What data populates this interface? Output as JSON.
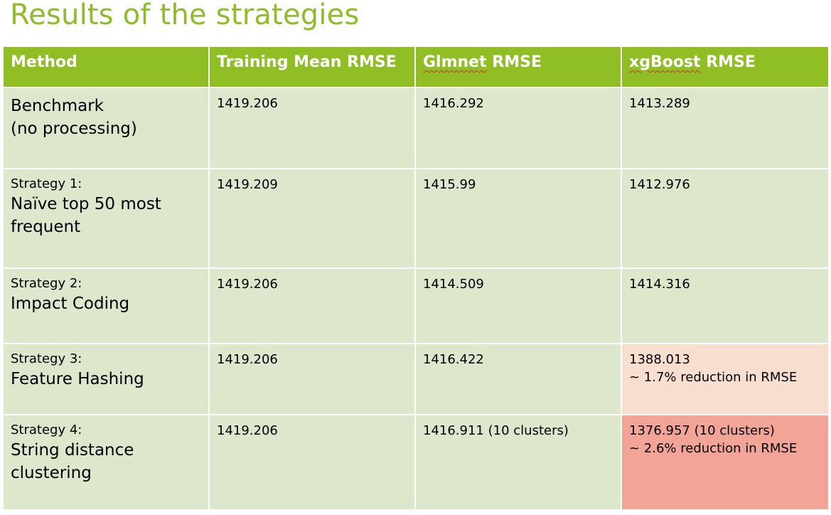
{
  "slide": {
    "title": "Results of the strategies"
  },
  "table": {
    "headers": {
      "method": "Method",
      "training": "Training Mean RMSE",
      "glmnet_word": "Glmnet",
      "glmnet_rest": " RMSE",
      "xgboost_word": "xgBoost",
      "xgboost_rest": " RMSE"
    },
    "rows": [
      {
        "label_small": "",
        "label_big": [
          "Benchmark",
          "(no processing)"
        ],
        "training": "1419.206",
        "glmnet": "1416.292",
        "xgboost": [
          "1413.289"
        ]
      },
      {
        "label_small": "Strategy 1:",
        "label_big": [
          "Naïve top 50 most",
          "frequent"
        ],
        "training": "1419.209",
        "glmnet": "1415.99",
        "xgboost": [
          "1412.976"
        ]
      },
      {
        "label_small": "Strategy 2:",
        "label_big": [
          "Impact Coding"
        ],
        "training": "1419.206",
        "glmnet": "1414.509",
        "xgboost": [
          "1414.316"
        ]
      },
      {
        "label_small": "Strategy 3:",
        "label_big": [
          "Feature Hashing"
        ],
        "training": "1419.206",
        "glmnet": "1416.422",
        "xgboost": [
          "1388.013",
          "~ 1.7% reduction in RMSE"
        ]
      },
      {
        "label_small": "Strategy 4:",
        "label_big": [
          "String distance",
          "clustering"
        ],
        "training": "1419.206",
        "glmnet": "1416.911 (10 clusters)",
        "xgboost": [
          "1376.957 (10 clusters)",
          "~ 2.6% reduction in RMSE"
        ]
      }
    ],
    "colors": {
      "header_bg": "#8fbf24",
      "cell_bg": "#dce7cc",
      "highlight_light": "#f8dece",
      "highlight_strong": "#f2a497",
      "title_color": "#8fbc2b"
    }
  }
}
